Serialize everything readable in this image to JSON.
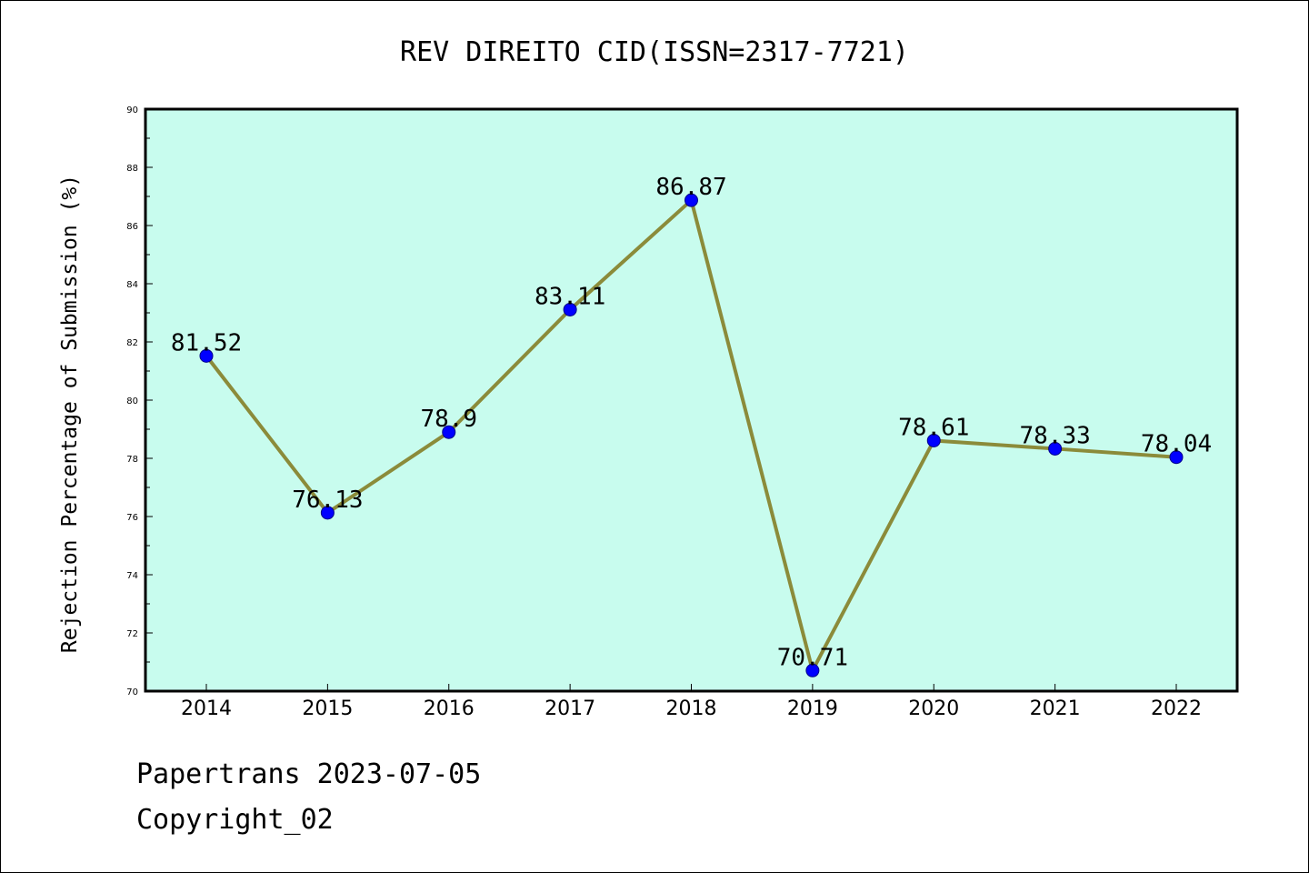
{
  "chart_data": {
    "type": "line",
    "title": "REV DIREITO CID(ISSN=2317-7721)",
    "xlabel": "",
    "ylabel": "Rejection Percentage of Submission (%)",
    "categories": [
      "2014",
      "2015",
      "2016",
      "2017",
      "2018",
      "2019",
      "2020",
      "2021",
      "2022"
    ],
    "series": [
      {
        "values": [
          81.52,
          76.13,
          78.9,
          83.11,
          86.87,
          70.71,
          78.61,
          78.33,
          78.04
        ],
        "labels": [
          "81.52",
          "76.13",
          "78.9",
          "83.11",
          "86.87",
          "70.71",
          "78.61",
          "78.33",
          "78.04"
        ]
      }
    ],
    "ylim": [
      70,
      90
    ],
    "yticks": [
      "70",
      "72",
      "74",
      "76",
      "78",
      "80",
      "82",
      "84",
      "86",
      "88",
      "90"
    ],
    "grid": false,
    "plot_background": "#c8fcee",
    "line_color": "#8b8b3a",
    "marker_color": "#0000ff"
  },
  "footer": {
    "line1": "Papertrans 2023-07-05",
    "line2": "Copyright_02"
  }
}
